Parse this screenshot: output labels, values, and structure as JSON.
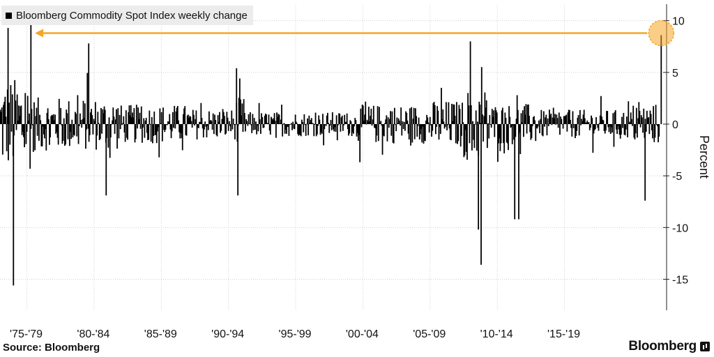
{
  "chart_data": {
    "type": "bar",
    "title": "Bloomberg Commodity Spot Index weekly change",
    "legend": [
      {
        "label": "Bloomberg Commodity Spot Index weekly change",
        "color": "#000000"
      }
    ],
    "legend_placement": "top-left",
    "ylabel": "Percent",
    "ylim": [
      -18,
      12
    ],
    "yticks": [
      10,
      5,
      0,
      -5,
      -10,
      -15
    ],
    "x_range_years": [
      1973.0,
      2022.6
    ],
    "x_tick_labels": [
      {
        "label": "'75-'79",
        "year": 1975.0
      },
      {
        "label": "'80-'84",
        "year": 1980.0
      },
      {
        "label": "'85-'89",
        "year": 1985.0
      },
      {
        "label": "'90-'94",
        "year": 1990.0
      },
      {
        "label": "'95-'99",
        "year": 1995.0
      },
      {
        "label": "'00-'04",
        "year": 2000.0
      },
      {
        "label": "'05-'09",
        "year": 2005.0
      },
      {
        "label": "'10-'14",
        "year": 2010.0
      },
      {
        "label": "'15-'19",
        "year": 2015.0
      }
    ],
    "grid": true,
    "notable_values": [
      {
        "year": 1973.6,
        "value": 9.3
      },
      {
        "year": 1974.0,
        "value": -15.6
      },
      {
        "year": 1975.3,
        "value": 9.6
      },
      {
        "year": 1979.6,
        "value": 7.8
      },
      {
        "year": 1980.9,
        "value": -6.9
      },
      {
        "year": 1990.6,
        "value": 5.4
      },
      {
        "year": 1990.7,
        "value": -6.9
      },
      {
        "year": 2008.0,
        "value": 8.0
      },
      {
        "year": 2008.8,
        "value": -13.6
      },
      {
        "year": 2008.6,
        "value": -10.2
      },
      {
        "year": 2011.3,
        "value": -9.2
      },
      {
        "year": 2011.6,
        "value": -9.2
      },
      {
        "year": 2021.0,
        "value": -7.4
      },
      {
        "year": 2022.2,
        "value": 8.6
      }
    ],
    "volatility_bands": [
      {
        "from": 1973.0,
        "to": 1975.5,
        "amplitude": 4.5
      },
      {
        "from": 1975.5,
        "to": 1982.0,
        "amplitude": 2.6
      },
      {
        "from": 1982.0,
        "to": 1987.0,
        "amplitude": 1.9
      },
      {
        "from": 1987.0,
        "to": 1990.5,
        "amplitude": 1.5
      },
      {
        "from": 1990.5,
        "to": 1991.2,
        "amplitude": 2.6
      },
      {
        "from": 1991.2,
        "to": 1999.5,
        "amplitude": 1.2
      },
      {
        "from": 1999.5,
        "to": 2005.0,
        "amplitude": 1.9
      },
      {
        "from": 2005.0,
        "to": 2007.5,
        "amplitude": 2.3
      },
      {
        "from": 2007.5,
        "to": 2009.5,
        "amplitude": 3.6
      },
      {
        "from": 2009.5,
        "to": 2013.0,
        "amplitude": 2.0
      },
      {
        "from": 2013.0,
        "to": 2020.0,
        "amplitude": 1.4
      },
      {
        "from": 2020.0,
        "to": 2022.3,
        "amplitude": 2.0
      }
    ],
    "annotation": {
      "type": "arrow-to-circle",
      "color": "#f5a623",
      "circle_year": 2022.2,
      "circle_value": 8.8,
      "arrow_end_year": 1975.6,
      "arrow_value": 8.8
    },
    "source": "Source: Bloomberg",
    "brand": "Bloomberg"
  }
}
